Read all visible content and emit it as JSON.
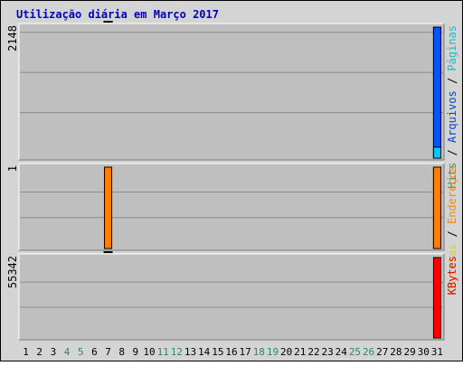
{
  "chart_data": {
    "type": "bar",
    "title": "Utilização diária em Março 2017",
    "categories": [
      "1",
      "2",
      "3",
      "4",
      "5",
      "6",
      "7",
      "8",
      "9",
      "10",
      "11",
      "12",
      "13",
      "14",
      "15",
      "16",
      "17",
      "18",
      "19",
      "20",
      "21",
      "22",
      "23",
      "24",
      "25",
      "26",
      "27",
      "28",
      "29",
      "30",
      "31"
    ],
    "weekend_days": [
      "4",
      "5",
      "11",
      "12",
      "18",
      "19",
      "25",
      "26"
    ],
    "panels": [
      {
        "name": "hits-pages-files",
        "ymax_label": "2148",
        "ylim": [
          0,
          2148
        ],
        "legend": [
          {
            "text": "Hits",
            "color": "#339966"
          },
          {
            "sep": " / ",
            "text": "Arquivos",
            "color": "#0044dd"
          },
          {
            "sep": " / ",
            "text": "Páginas",
            "color": "#11c1d6"
          }
        ],
        "series": [
          {
            "name": "Hits",
            "color": "#00805c",
            "values": [
              0,
              0,
              0,
              0,
              0,
              0,
              1,
              0,
              0,
              0,
              0,
              0,
              0,
              0,
              0,
              0,
              0,
              0,
              0,
              0,
              0,
              0,
              0,
              0,
              0,
              0,
              0,
              0,
              0,
              0,
              2148
            ]
          },
          {
            "name": "Arquivos",
            "color": "#0055ff",
            "values": [
              0,
              0,
              0,
              0,
              0,
              0,
              1,
              0,
              0,
              0,
              0,
              0,
              0,
              0,
              0,
              0,
              0,
              0,
              0,
              0,
              0,
              0,
              0,
              0,
              0,
              0,
              0,
              0,
              0,
              0,
              2148
            ]
          },
          {
            "name": "Páginas",
            "color": "#00c8ff",
            "values": [
              0,
              0,
              0,
              0,
              0,
              0,
              1,
              0,
              0,
              0,
              0,
              0,
              0,
              0,
              0,
              0,
              0,
              0,
              0,
              0,
              0,
              0,
              0,
              0,
              0,
              0,
              0,
              0,
              0,
              0,
              180
            ]
          }
        ]
      },
      {
        "name": "visits-sites",
        "ymax_label": "1",
        "ylim": [
          0,
          1
        ],
        "legend": [
          {
            "text": "Visitas",
            "color": "#d9d900"
          },
          {
            "sep": " / ",
            "text": "Endereços",
            "color": "#ff8800"
          }
        ],
        "series": [
          {
            "name": "Visitas",
            "color": "#ffff00",
            "values": [
              0,
              0,
              0,
              0,
              0,
              0,
              0,
              0,
              0,
              0,
              0,
              0,
              0,
              0,
              0,
              0,
              0,
              0,
              0,
              0,
              0,
              0,
              0,
              0,
              0,
              0,
              0,
              0,
              0,
              0,
              1
            ]
          },
          {
            "name": "Endereços",
            "color": "#ff8000",
            "values": [
              0,
              0,
              0,
              0,
              0,
              0,
              1,
              0,
              0,
              0,
              0,
              0,
              0,
              0,
              0,
              0,
              0,
              0,
              0,
              0,
              0,
              0,
              0,
              0,
              0,
              0,
              0,
              0,
              0,
              0,
              1
            ]
          }
        ]
      },
      {
        "name": "kbytes",
        "ymax_label": "55342",
        "ylim": [
          0,
          55342
        ],
        "legend": [
          {
            "text": "KBytes",
            "color": "#ee0000"
          }
        ],
        "series": [
          {
            "name": "KBytes",
            "color": "#ff0000",
            "values": [
              0,
              0,
              0,
              0,
              0,
              0,
              40,
              0,
              0,
              0,
              0,
              0,
              0,
              0,
              0,
              0,
              0,
              0,
              0,
              0,
              0,
              0,
              0,
              0,
              0,
              0,
              0,
              0,
              0,
              0,
              55342
            ]
          }
        ]
      }
    ],
    "colors": {
      "background": "#bfbfbf",
      "frame": "#d4d4d4",
      "title": "#0000bb",
      "gridline": "#8c8c8c",
      "weekday_label": "#000000",
      "weekend_label": "#2e8b57"
    }
  }
}
